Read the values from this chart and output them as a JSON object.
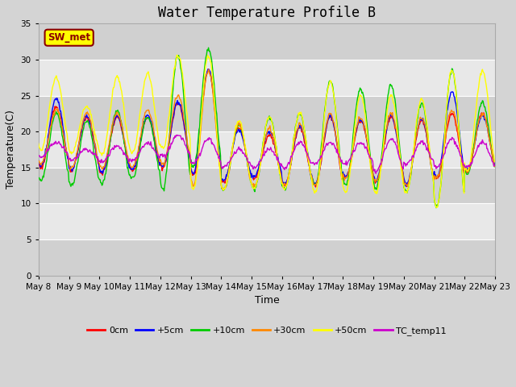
{
  "title": "Water Temperature Profile B",
  "xlabel": "Time",
  "ylabel": "Temperature(C)",
  "annotation_text": "SW_met",
  "annotation_bg": "#ffff00",
  "annotation_border": "#8b0000",
  "ylim": [
    0,
    35
  ],
  "yticks": [
    0,
    5,
    10,
    15,
    20,
    25,
    30,
    35
  ],
  "fig_bg": "#d4d4d4",
  "plot_bg_light": "#e8e8e8",
  "plot_bg_dark": "#d0d0d0",
  "grid_color": "#ffffff",
  "series": [
    {
      "label": "0cm",
      "color": "#ff0000"
    },
    {
      "label": "+5cm",
      "color": "#0000ff"
    },
    {
      "label": "+10cm",
      "color": "#00cc00"
    },
    {
      "label": "+30cm",
      "color": "#ff8800"
    },
    {
      "label": "+50cm",
      "color": "#ffff00"
    },
    {
      "label": "TC_temp11",
      "color": "#cc00cc"
    }
  ],
  "n_days": 15,
  "start_day": 8,
  "samples_per_day": 48,
  "day_peaks": {
    "0cm": [
      23.5,
      22.0,
      22.0,
      22.0,
      24.0,
      28.5,
      20.5,
      19.5,
      20.5,
      22.0,
      21.5,
      22.0,
      21.5,
      22.5,
      22.5
    ],
    "+5cm": [
      24.5,
      22.2,
      22.2,
      22.2,
      24.2,
      28.7,
      20.2,
      20.0,
      20.7,
      22.2,
      21.7,
      22.2,
      21.7,
      25.5,
      22.2
    ],
    "+10cm": [
      22.5,
      21.5,
      23.0,
      22.0,
      30.5,
      31.5,
      21.0,
      22.0,
      22.5,
      27.0,
      26.0,
      26.5,
      24.0,
      28.5,
      24.0
    ],
    "+30cm": [
      23.0,
      22.5,
      22.5,
      23.0,
      25.0,
      28.5,
      21.0,
      20.5,
      21.0,
      22.5,
      22.0,
      22.5,
      22.0,
      23.0,
      22.5
    ],
    "+50cm": [
      27.5,
      23.5,
      27.5,
      28.0,
      30.5,
      30.5,
      21.5,
      22.0,
      22.5,
      27.0,
      25.0,
      25.0,
      24.5,
      28.5,
      28.5
    ],
    "TC_temp11": [
      18.5,
      17.5,
      18.0,
      18.5,
      19.5,
      19.0,
      17.5,
      17.5,
      18.5,
      18.5,
      18.5,
      19.0,
      18.5,
      19.0,
      18.5
    ]
  },
  "day_mins": {
    "0cm": [
      15.0,
      14.5,
      14.2,
      14.5,
      15.0,
      14.0,
      13.0,
      13.5,
      12.5,
      12.5,
      13.5,
      13.0,
      12.5,
      13.5,
      14.5
    ],
    "+5cm": [
      15.2,
      14.7,
      14.4,
      14.7,
      15.2,
      14.2,
      13.2,
      13.7,
      12.7,
      12.7,
      13.7,
      13.2,
      12.7,
      13.7,
      14.7
    ],
    "+10cm": [
      13.2,
      12.5,
      12.8,
      13.5,
      12.0,
      15.0,
      12.0,
      12.0,
      12.0,
      12.5,
      12.5,
      12.0,
      11.5,
      9.5,
      14.0
    ],
    "+30cm": [
      15.5,
      15.0,
      14.8,
      15.0,
      15.5,
      12.5,
      12.0,
      12.5,
      12.5,
      12.5,
      13.5,
      13.0,
      12.5,
      13.5,
      14.5
    ],
    "+50cm": [
      17.5,
      17.0,
      16.8,
      17.0,
      17.5,
      12.0,
      12.0,
      12.0,
      12.0,
      11.5,
      11.5,
      11.5,
      11.5,
      9.5,
      14.5
    ],
    "TC_temp11": [
      16.5,
      16.0,
      15.8,
      16.0,
      16.5,
      15.5,
      15.0,
      15.0,
      15.0,
      15.5,
      15.5,
      14.5,
      15.5,
      15.0,
      15.0
    ]
  }
}
